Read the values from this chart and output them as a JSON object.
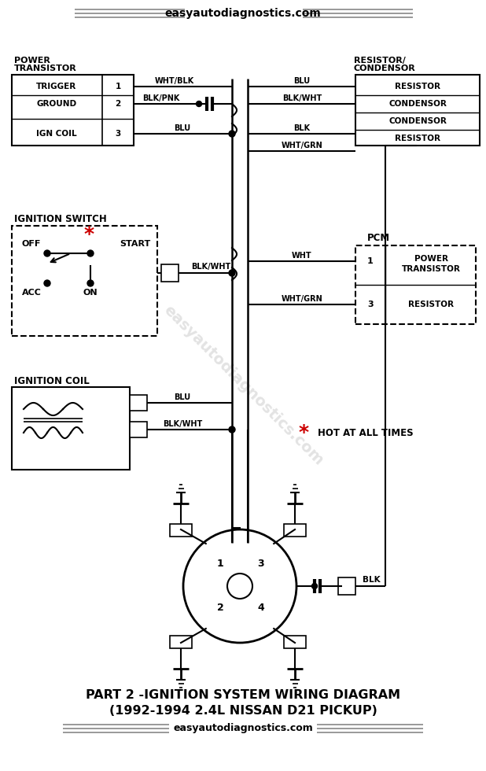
{
  "title_top": "easyautodiagnostics.com",
  "title_bottom1": "PART 2 -IGNITION SYSTEM WIRING DIAGRAM",
  "title_bottom2": "(1992-1994 2.4L NISSAN D21 PICKUP)",
  "website": "easyautodiagnostics.com",
  "bg_color": "#ffffff",
  "text_color": "#000000",
  "line_color": "#000000",
  "red_color": "#cc0000",
  "box_color": "#000000",
  "watermark_color": "#d0d0d0",
  "header_line_color": "#888888"
}
